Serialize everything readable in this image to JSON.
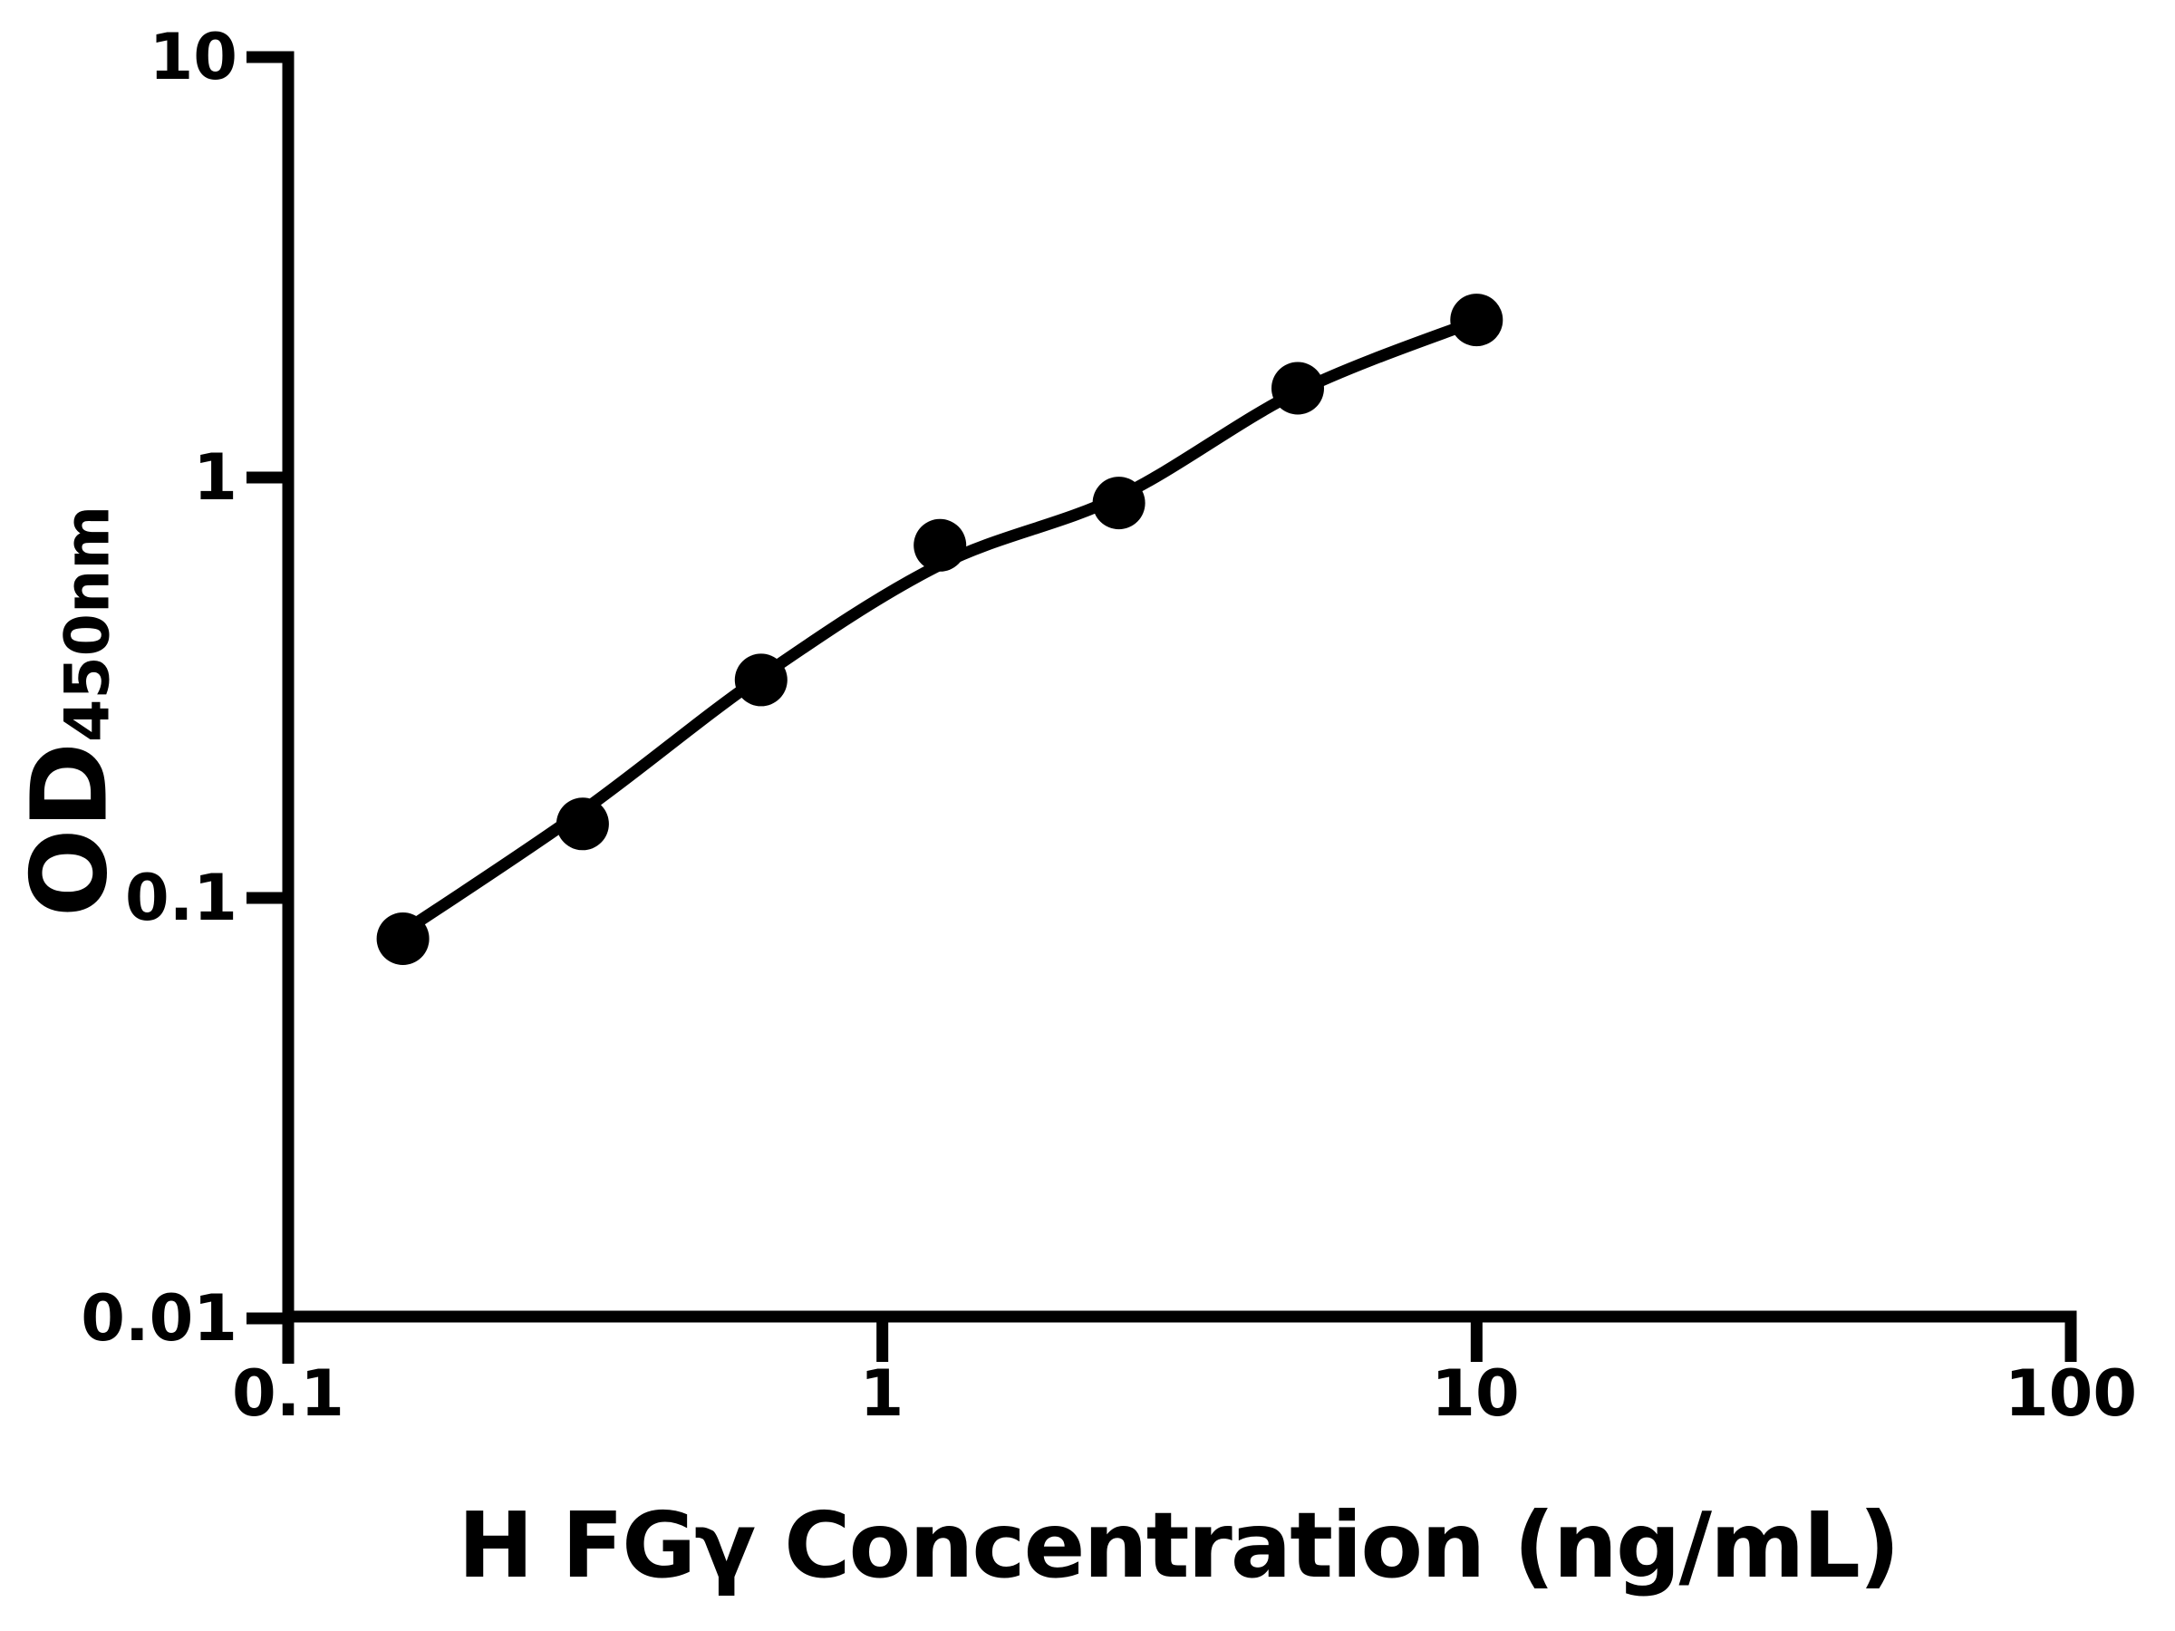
{
  "figure": {
    "background_color": "#ffffff",
    "ink_color": "#000000"
  },
  "chart_data": {
    "type": "scatter",
    "title": "",
    "xlabel": "H FGγ Concentration (ng/mL)",
    "ylabel": "OD450nm",
    "ylabel_main": "OD",
    "ylabel_sub": "450nm",
    "x_scale": "log",
    "y_scale": "log",
    "xlim": [
      0.1,
      100
    ],
    "ylim": [
      0.01,
      10
    ],
    "grid": "off",
    "legend": "none",
    "x_ticks": [
      {
        "value": 0.1,
        "label": "0.1"
      },
      {
        "value": 1,
        "label": "1"
      },
      {
        "value": 10,
        "label": "10"
      },
      {
        "value": 100,
        "label": "100"
      }
    ],
    "y_ticks": [
      {
        "value": 10,
        "label": "10"
      },
      {
        "value": 1,
        "label": "1"
      },
      {
        "value": 0.1,
        "label": "0.1"
      },
      {
        "value": 0.01,
        "label": "0.01"
      }
    ],
    "series": [
      {
        "name": "standard curve data points",
        "marker": "filled-circle",
        "color": "#000000",
        "points": [
          {
            "x": 0.156,
            "y": 0.08
          },
          {
            "x": 0.313,
            "y": 0.15
          },
          {
            "x": 0.625,
            "y": 0.33
          },
          {
            "x": 1.25,
            "y": 0.69
          },
          {
            "x": 2.5,
            "y": 0.87
          },
          {
            "x": 5,
            "y": 1.63
          },
          {
            "x": 10,
            "y": 2.37
          }
        ]
      }
    ],
    "fit_curve": {
      "name": "fitted curve",
      "color": "#000000",
      "x": [
        0.156,
        0.313,
        0.625,
        1.25,
        2.5,
        5,
        10
      ],
      "od": [
        0.083,
        0.161,
        0.336,
        0.62,
        0.9,
        1.6,
        2.36
      ]
    }
  }
}
